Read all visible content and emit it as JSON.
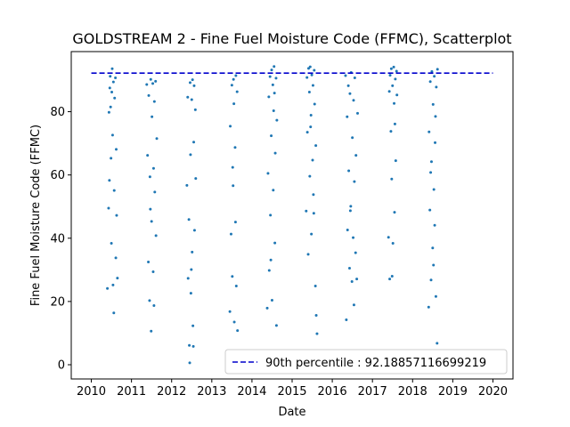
{
  "chart_data": {
    "type": "scatter",
    "title": "GOLDSTREAM 2 - Fine Fuel Moisture Code (FFMC), Scatterplot",
    "xlabel": "Date",
    "ylabel": "Fine Fuel Moisture Code (FFMC)",
    "xlim": [
      2009.5,
      2020.5
    ],
    "ylim": [
      -4.5,
      99
    ],
    "x_ticks": [
      "2010",
      "2011",
      "2012",
      "2013",
      "2014",
      "2015",
      "2016",
      "2017",
      "2018",
      "2019",
      "2020"
    ],
    "y_ticks": [
      "0",
      "20",
      "40",
      "60",
      "80"
    ],
    "grid": false,
    "point_color": "#1f77b4",
    "reference_line": {
      "value": 92.18857116699219,
      "color": "#0000cc",
      "style": "dashed",
      "legend_label": "90th percentile : 92.18857116699219"
    },
    "legend_placement": "lower-right",
    "series": [
      {
        "points": [
          {
            "x": 2010.4,
            "y": 24.1
          },
          {
            "x": 2010.43,
            "y": 49.5
          },
          {
            "x": 2010.44,
            "y": 79.8
          },
          {
            "x": 2010.46,
            "y": 87.5
          },
          {
            "x": 2010.47,
            "y": 91.2
          },
          {
            "x": 2010.49,
            "y": 65.3
          },
          {
            "x": 2010.5,
            "y": 38.4
          },
          {
            "x": 2010.51,
            "y": 86.2
          },
          {
            "x": 2010.52,
            "y": 93.6
          },
          {
            "x": 2010.53,
            "y": 72.6
          },
          {
            "x": 2010.54,
            "y": 25.2
          },
          {
            "x": 2010.55,
            "y": 89.4
          },
          {
            "x": 2010.56,
            "y": 16.4
          },
          {
            "x": 2010.57,
            "y": 55.1
          },
          {
            "x": 2010.58,
            "y": 84.3
          },
          {
            "x": 2010.6,
            "y": 90.7
          },
          {
            "x": 2010.61,
            "y": 33.8
          },
          {
            "x": 2010.62,
            "y": 68.1
          },
          {
            "x": 2010.63,
            "y": 47.2
          },
          {
            "x": 2010.65,
            "y": 27.4
          },
          {
            "x": 2010.48,
            "y": 81.5
          },
          {
            "x": 2010.45,
            "y": 58.3
          },
          {
            "x": 2011.38,
            "y": 88.6
          },
          {
            "x": 2011.4,
            "y": 66.2
          },
          {
            "x": 2011.42,
            "y": 32.5
          },
          {
            "x": 2011.43,
            "y": 85.1
          },
          {
            "x": 2011.45,
            "y": 20.3
          },
          {
            "x": 2011.46,
            "y": 59.4
          },
          {
            "x": 2011.48,
            "y": 90.2
          },
          {
            "x": 2011.49,
            "y": 10.6
          },
          {
            "x": 2011.5,
            "y": 45.3
          },
          {
            "x": 2011.51,
            "y": 78.4
          },
          {
            "x": 2011.53,
            "y": 88.9
          },
          {
            "x": 2011.54,
            "y": 29.4
          },
          {
            "x": 2011.55,
            "y": 62.1
          },
          {
            "x": 2011.57,
            "y": 83.2
          },
          {
            "x": 2011.58,
            "y": 54.6
          },
          {
            "x": 2011.6,
            "y": 89.6
          },
          {
            "x": 2011.61,
            "y": 40.8
          },
          {
            "x": 2011.63,
            "y": 71.5
          },
          {
            "x": 2011.47,
            "y": 49.2
          },
          {
            "x": 2011.56,
            "y": 18.7
          },
          {
            "x": 2012.38,
            "y": 56.7
          },
          {
            "x": 2012.4,
            "y": 84.6
          },
          {
            "x": 2012.41,
            "y": 27.3
          },
          {
            "x": 2012.43,
            "y": 45.9
          },
          {
            "x": 2012.44,
            "y": 6.1
          },
          {
            "x": 2012.45,
            "y": 0.6
          },
          {
            "x": 2012.46,
            "y": 89.2
          },
          {
            "x": 2012.47,
            "y": 66.4
          },
          {
            "x": 2012.48,
            "y": 22.6
          },
          {
            "x": 2012.5,
            "y": 83.8
          },
          {
            "x": 2012.51,
            "y": 35.6
          },
          {
            "x": 2012.52,
            "y": 90.1
          },
          {
            "x": 2012.53,
            "y": 12.3
          },
          {
            "x": 2012.55,
            "y": 70.4
          },
          {
            "x": 2012.56,
            "y": 88.2
          },
          {
            "x": 2012.57,
            "y": 42.5
          },
          {
            "x": 2012.59,
            "y": 80.6
          },
          {
            "x": 2012.6,
            "y": 58.9
          },
          {
            "x": 2012.49,
            "y": 30.1
          },
          {
            "x": 2012.54,
            "y": 5.8
          },
          {
            "x": 2013.45,
            "y": 16.8
          },
          {
            "x": 2013.46,
            "y": 75.4
          },
          {
            "x": 2013.48,
            "y": 41.3
          },
          {
            "x": 2013.5,
            "y": 88.4
          },
          {
            "x": 2013.51,
            "y": 27.9
          },
          {
            "x": 2013.53,
            "y": 56.6
          },
          {
            "x": 2013.54,
            "y": 90.2
          },
          {
            "x": 2013.55,
            "y": 82.5
          },
          {
            "x": 2013.56,
            "y": 13.5
          },
          {
            "x": 2013.58,
            "y": 68.7
          },
          {
            "x": 2013.59,
            "y": 45.1
          },
          {
            "x": 2013.6,
            "y": 91.4
          },
          {
            "x": 2013.61,
            "y": 24.9
          },
          {
            "x": 2013.63,
            "y": 86.3
          },
          {
            "x": 2013.64,
            "y": 10.8
          },
          {
            "x": 2013.52,
            "y": 62.4
          },
          {
            "x": 2014.38,
            "y": 17.9
          },
          {
            "x": 2014.4,
            "y": 60.5
          },
          {
            "x": 2014.42,
            "y": 84.7
          },
          {
            "x": 2014.43,
            "y": 29.8
          },
          {
            "x": 2014.45,
            "y": 91.1
          },
          {
            "x": 2014.46,
            "y": 47.3
          },
          {
            "x": 2014.48,
            "y": 72.4
          },
          {
            "x": 2014.49,
            "y": 93.2
          },
          {
            "x": 2014.5,
            "y": 20.4
          },
          {
            "x": 2014.52,
            "y": 88.5
          },
          {
            "x": 2014.53,
            "y": 55.2
          },
          {
            "x": 2014.54,
            "y": 80.3
          },
          {
            "x": 2014.55,
            "y": 94.3
          },
          {
            "x": 2014.57,
            "y": 38.5
          },
          {
            "x": 2014.58,
            "y": 66.9
          },
          {
            "x": 2014.6,
            "y": 90.6
          },
          {
            "x": 2014.61,
            "y": 12.4
          },
          {
            "x": 2014.62,
            "y": 77.3
          },
          {
            "x": 2014.47,
            "y": 33.1
          },
          {
            "x": 2014.56,
            "y": 85.9
          },
          {
            "x": 2015.35,
            "y": 48.6
          },
          {
            "x": 2015.37,
            "y": 90.8
          },
          {
            "x": 2015.38,
            "y": 73.5
          },
          {
            "x": 2015.4,
            "y": 34.9
          },
          {
            "x": 2015.41,
            "y": 93.7
          },
          {
            "x": 2015.43,
            "y": 86.2
          },
          {
            "x": 2015.44,
            "y": 59.6
          },
          {
            "x": 2015.45,
            "y": 94.2
          },
          {
            "x": 2015.47,
            "y": 78.9
          },
          {
            "x": 2015.48,
            "y": 41.3
          },
          {
            "x": 2015.49,
            "y": 91.6
          },
          {
            "x": 2015.51,
            "y": 64.7
          },
          {
            "x": 2015.52,
            "y": 88.3
          },
          {
            "x": 2015.53,
            "y": 53.8
          },
          {
            "x": 2015.55,
            "y": 93.1
          },
          {
            "x": 2015.56,
            "y": 82.4
          },
          {
            "x": 2015.58,
            "y": 24.9
          },
          {
            "x": 2015.59,
            "y": 69.3
          },
          {
            "x": 2015.6,
            "y": 15.6
          },
          {
            "x": 2015.62,
            "y": 9.8
          },
          {
            "x": 2015.46,
            "y": 75.2
          },
          {
            "x": 2015.54,
            "y": 47.9
          },
          {
            "x": 2016.33,
            "y": 91.4
          },
          {
            "x": 2016.35,
            "y": 14.2
          },
          {
            "x": 2016.37,
            "y": 78.4
          },
          {
            "x": 2016.38,
            "y": 42.6
          },
          {
            "x": 2016.4,
            "y": 88.2
          },
          {
            "x": 2016.41,
            "y": 61.3
          },
          {
            "x": 2016.43,
            "y": 30.5
          },
          {
            "x": 2016.44,
            "y": 85.7
          },
          {
            "x": 2016.46,
            "y": 50.1
          },
          {
            "x": 2016.47,
            "y": 92.4
          },
          {
            "x": 2016.49,
            "y": 26.3
          },
          {
            "x": 2016.5,
            "y": 71.8
          },
          {
            "x": 2016.52,
            "y": 40.2
          },
          {
            "x": 2016.53,
            "y": 83.6
          },
          {
            "x": 2016.55,
            "y": 57.9
          },
          {
            "x": 2016.56,
            "y": 90.7
          },
          {
            "x": 2016.58,
            "y": 35.4
          },
          {
            "x": 2016.59,
            "y": 66.2
          },
          {
            "x": 2016.61,
            "y": 27.1
          },
          {
            "x": 2016.63,
            "y": 79.5
          },
          {
            "x": 2016.45,
            "y": 48.7
          },
          {
            "x": 2016.54,
            "y": 18.9
          },
          {
            "x": 2017.4,
            "y": 40.3
          },
          {
            "x": 2017.42,
            "y": 86.4
          },
          {
            "x": 2017.43,
            "y": 27.1
          },
          {
            "x": 2017.44,
            "y": 91.5
          },
          {
            "x": 2017.46,
            "y": 73.8
          },
          {
            "x": 2017.47,
            "y": 93.6
          },
          {
            "x": 2017.48,
            "y": 58.7
          },
          {
            "x": 2017.5,
            "y": 88.2
          },
          {
            "x": 2017.51,
            "y": 38.4
          },
          {
            "x": 2017.53,
            "y": 94.1
          },
          {
            "x": 2017.54,
            "y": 82.6
          },
          {
            "x": 2017.55,
            "y": 48.2
          },
          {
            "x": 2017.57,
            "y": 90.3
          },
          {
            "x": 2017.58,
            "y": 64.5
          },
          {
            "x": 2017.6,
            "y": 92.8
          },
          {
            "x": 2017.61,
            "y": 85.3
          },
          {
            "x": 2017.49,
            "y": 28.0
          },
          {
            "x": 2017.56,
            "y": 76.1
          },
          {
            "x": 2018.4,
            "y": 18.2
          },
          {
            "x": 2018.41,
            "y": 73.6
          },
          {
            "x": 2018.43,
            "y": 48.9
          },
          {
            "x": 2018.44,
            "y": 89.5
          },
          {
            "x": 2018.46,
            "y": 26.8
          },
          {
            "x": 2018.47,
            "y": 64.2
          },
          {
            "x": 2018.48,
            "y": 92.7
          },
          {
            "x": 2018.5,
            "y": 36.9
          },
          {
            "x": 2018.51,
            "y": 82.3
          },
          {
            "x": 2018.53,
            "y": 55.4
          },
          {
            "x": 2018.54,
            "y": 91.2
          },
          {
            "x": 2018.55,
            "y": 44.1
          },
          {
            "x": 2018.57,
            "y": 78.5
          },
          {
            "x": 2018.58,
            "y": 21.6
          },
          {
            "x": 2018.59,
            "y": 87.8
          },
          {
            "x": 2018.61,
            "y": 6.8
          },
          {
            "x": 2018.62,
            "y": 93.4
          },
          {
            "x": 2018.45,
            "y": 60.8
          },
          {
            "x": 2018.52,
            "y": 31.5
          },
          {
            "x": 2018.56,
            "y": 70.2
          }
        ]
      }
    ]
  }
}
